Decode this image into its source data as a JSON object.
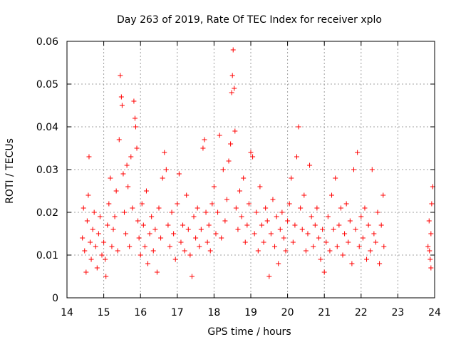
{
  "chart_data": {
    "type": "scatter",
    "title": "Day 263 of 2019, Rate Of TEC Index for receiver xplo",
    "xlabel": "GPS time / hours",
    "ylabel": "ROTI / TECUs",
    "xlim": [
      14,
      24
    ],
    "ylim": [
      0,
      0.06
    ],
    "xticks": [
      {
        "v": 14,
        "label": "14"
      },
      {
        "v": 15,
        "label": "15"
      },
      {
        "v": 16,
        "label": "16"
      },
      {
        "v": 17,
        "label": "17"
      },
      {
        "v": 18,
        "label": "18"
      },
      {
        "v": 19,
        "label": "19"
      },
      {
        "v": 20,
        "label": "20"
      },
      {
        "v": 21,
        "label": "21"
      },
      {
        "v": 22,
        "label": "22"
      },
      {
        "v": 23,
        "label": "23"
      },
      {
        "v": 24,
        "label": "24"
      }
    ],
    "yticks": [
      {
        "v": 0,
        "label": "0"
      },
      {
        "v": 0.01,
        "label": "0.01"
      },
      {
        "v": 0.02,
        "label": "0.02"
      },
      {
        "v": 0.03,
        "label": "0.03"
      },
      {
        "v": 0.04,
        "label": "0.04"
      },
      {
        "v": 0.05,
        "label": "0.05"
      },
      {
        "v": 0.06,
        "label": "0.06"
      }
    ],
    "grid": true,
    "marker": "plus",
    "color": "#ff0000",
    "series": [
      {
        "name": "ROTI",
        "points": [
          [
            14.42,
            0.014
          ],
          [
            14.45,
            0.021
          ],
          [
            14.48,
            0.011
          ],
          [
            14.52,
            0.006
          ],
          [
            14.55,
            0.018
          ],
          [
            14.58,
            0.024
          ],
          [
            14.6,
            0.033
          ],
          [
            14.63,
            0.013
          ],
          [
            14.66,
            0.009
          ],
          [
            14.7,
            0.016
          ],
          [
            14.74,
            0.02
          ],
          [
            14.78,
            0.012
          ],
          [
            14.82,
            0.007
          ],
          [
            14.86,
            0.015
          ],
          [
            14.9,
            0.019
          ],
          [
            14.95,
            0.01
          ],
          [
            15.0,
            0.013
          ],
          [
            15.04,
            0.009
          ],
          [
            15.06,
            0.005
          ],
          [
            15.1,
            0.017
          ],
          [
            15.14,
            0.022
          ],
          [
            15.18,
            0.028
          ],
          [
            15.22,
            0.012
          ],
          [
            15.26,
            0.016
          ],
          [
            15.3,
            0.019
          ],
          [
            15.34,
            0.025
          ],
          [
            15.38,
            0.011
          ],
          [
            15.42,
            0.037
          ],
          [
            15.45,
            0.052
          ],
          [
            15.48,
            0.047
          ],
          [
            15.5,
            0.045
          ],
          [
            15.53,
            0.029
          ],
          [
            15.56,
            0.02
          ],
          [
            15.6,
            0.015
          ],
          [
            15.63,
            0.031
          ],
          [
            15.66,
            0.026
          ],
          [
            15.7,
            0.012
          ],
          [
            15.74,
            0.033
          ],
          [
            15.78,
            0.021
          ],
          [
            15.82,
            0.046
          ],
          [
            15.85,
            0.042
          ],
          [
            15.87,
            0.04
          ],
          [
            15.9,
            0.035
          ],
          [
            15.93,
            0.018
          ],
          [
            15.96,
            0.014
          ],
          [
            16.0,
            0.01
          ],
          [
            16.04,
            0.022
          ],
          [
            16.08,
            0.017
          ],
          [
            16.12,
            0.012
          ],
          [
            16.16,
            0.025
          ],
          [
            16.2,
            0.008
          ],
          [
            16.25,
            0.015
          ],
          [
            16.3,
            0.019
          ],
          [
            16.35,
            0.011
          ],
          [
            16.4,
            0.016
          ],
          [
            16.45,
            0.006
          ],
          [
            16.5,
            0.021
          ],
          [
            16.55,
            0.014
          ],
          [
            16.6,
            0.028
          ],
          [
            16.65,
            0.034
          ],
          [
            16.7,
            0.03
          ],
          [
            16.75,
            0.017
          ],
          [
            16.8,
            0.012
          ],
          [
            16.85,
            0.02
          ],
          [
            16.9,
            0.015
          ],
          [
            16.95,
            0.009
          ],
          [
            17.0,
            0.022
          ],
          [
            17.05,
            0.029
          ],
          [
            17.1,
            0.013
          ],
          [
            17.15,
            0.017
          ],
          [
            17.2,
            0.011
          ],
          [
            17.25,
            0.024
          ],
          [
            17.3,
            0.016
          ],
          [
            17.35,
            0.01
          ],
          [
            17.4,
            0.005
          ],
          [
            17.45,
            0.019
          ],
          [
            17.5,
            0.014
          ],
          [
            17.55,
            0.021
          ],
          [
            17.6,
            0.012
          ],
          [
            17.65,
            0.016
          ],
          [
            17.7,
            0.035
          ],
          [
            17.74,
            0.037
          ],
          [
            17.78,
            0.02
          ],
          [
            17.82,
            0.013
          ],
          [
            17.86,
            0.017
          ],
          [
            17.9,
            0.011
          ],
          [
            17.95,
            0.022
          ],
          [
            18.0,
            0.026
          ],
          [
            18.05,
            0.015
          ],
          [
            18.1,
            0.02
          ],
          [
            18.15,
            0.038
          ],
          [
            18.2,
            0.014
          ],
          [
            18.25,
            0.03
          ],
          [
            18.3,
            0.018
          ],
          [
            18.35,
            0.023
          ],
          [
            18.4,
            0.032
          ],
          [
            18.45,
            0.036
          ],
          [
            18.48,
            0.048
          ],
          [
            18.5,
            0.052
          ],
          [
            18.52,
            0.058
          ],
          [
            18.55,
            0.049
          ],
          [
            18.57,
            0.039
          ],
          [
            18.6,
            0.021
          ],
          [
            18.65,
            0.016
          ],
          [
            18.7,
            0.025
          ],
          [
            18.75,
            0.019
          ],
          [
            18.8,
            0.028
          ],
          [
            18.85,
            0.013
          ],
          [
            18.9,
            0.017
          ],
          [
            18.95,
            0.022
          ],
          [
            19.0,
            0.034
          ],
          [
            19.05,
            0.033
          ],
          [
            19.1,
            0.015
          ],
          [
            19.15,
            0.02
          ],
          [
            19.2,
            0.011
          ],
          [
            19.25,
            0.026
          ],
          [
            19.3,
            0.017
          ],
          [
            19.35,
            0.013
          ],
          [
            19.4,
            0.021
          ],
          [
            19.45,
            0.018
          ],
          [
            19.5,
            0.005
          ],
          [
            19.55,
            0.015
          ],
          [
            19.6,
            0.023
          ],
          [
            19.65,
            0.012
          ],
          [
            19.7,
            0.019
          ],
          [
            19.75,
            0.008
          ],
          [
            19.8,
            0.016
          ],
          [
            19.85,
            0.02
          ],
          [
            19.9,
            0.014
          ],
          [
            19.95,
            0.011
          ],
          [
            20.0,
            0.018
          ],
          [
            20.05,
            0.022
          ],
          [
            20.1,
            0.028
          ],
          [
            20.15,
            0.013
          ],
          [
            20.2,
            0.017
          ],
          [
            20.25,
            0.033
          ],
          [
            20.3,
            0.04
          ],
          [
            20.35,
            0.021
          ],
          [
            20.4,
            0.016
          ],
          [
            20.45,
            0.024
          ],
          [
            20.5,
            0.011
          ],
          [
            20.55,
            0.015
          ],
          [
            20.6,
            0.031
          ],
          [
            20.65,
            0.019
          ],
          [
            20.7,
            0.012
          ],
          [
            20.75,
            0.017
          ],
          [
            20.8,
            0.021
          ],
          [
            20.85,
            0.014
          ],
          [
            20.9,
            0.009
          ],
          [
            20.95,
            0.016
          ],
          [
            21.0,
            0.006
          ],
          [
            21.05,
            0.013
          ],
          [
            21.1,
            0.019
          ],
          [
            21.15,
            0.011
          ],
          [
            21.2,
            0.024
          ],
          [
            21.25,
            0.016
          ],
          [
            21.3,
            0.028
          ],
          [
            21.35,
            0.012
          ],
          [
            21.4,
            0.017
          ],
          [
            21.45,
            0.021
          ],
          [
            21.5,
            0.01
          ],
          [
            21.55,
            0.015
          ],
          [
            21.6,
            0.022
          ],
          [
            21.65,
            0.013
          ],
          [
            21.7,
            0.018
          ],
          [
            21.75,
            0.008
          ],
          [
            21.8,
            0.03
          ],
          [
            21.85,
            0.016
          ],
          [
            21.9,
            0.034
          ],
          [
            21.95,
            0.012
          ],
          [
            22.0,
            0.019
          ],
          [
            22.05,
            0.014
          ],
          [
            22.1,
            0.021
          ],
          [
            22.15,
            0.009
          ],
          [
            22.2,
            0.017
          ],
          [
            22.25,
            0.011
          ],
          [
            22.3,
            0.03
          ],
          [
            22.35,
            0.015
          ],
          [
            22.4,
            0.013
          ],
          [
            22.45,
            0.02
          ],
          [
            22.5,
            0.008
          ],
          [
            22.55,
            0.017
          ],
          [
            22.6,
            0.024
          ],
          [
            22.62,
            0.012
          ],
          [
            23.82,
            0.012
          ],
          [
            23.85,
            0.018
          ],
          [
            23.88,
            0.009
          ],
          [
            23.9,
            0.015
          ],
          [
            23.92,
            0.022
          ],
          [
            23.95,
            0.026
          ],
          [
            23.86,
            0.011
          ],
          [
            23.9,
            0.007
          ]
        ]
      }
    ]
  }
}
